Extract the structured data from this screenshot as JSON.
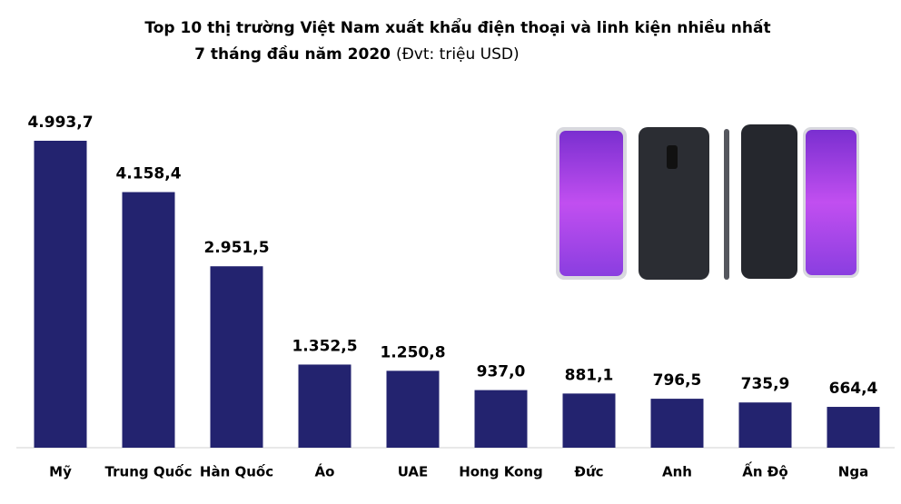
{
  "chart_data": {
    "type": "bar",
    "title": "Top 10 thị trường Việt Nam xuất khẩu điện thoại và linh kiện nhiều nhất",
    "subtitle": "7 tháng đầu năm 2020",
    "unit_note": "(Đvt: triệu USD)",
    "categories": [
      "Mỹ",
      "Trung Quốc",
      "Hàn Quốc",
      "Áo",
      "UAE",
      "Hong Kong",
      "Đức",
      "Anh",
      "Ấn Độ",
      "Nga"
    ],
    "values": [
      4993.7,
      4158.4,
      2951.5,
      1352.5,
      1250.8,
      937.0,
      881.1,
      796.5,
      735.9,
      664.4
    ],
    "value_labels": [
      "4.993,7",
      "4.158,4",
      "2.951,5",
      "1.352,5",
      "1.250,8",
      "937,0",
      "881,1",
      "796,5",
      "735,9",
      "664,4"
    ],
    "color": "#23236f"
  }
}
